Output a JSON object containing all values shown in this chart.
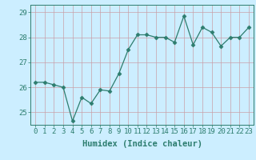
{
  "x": [
    0,
    1,
    2,
    3,
    4,
    5,
    6,
    7,
    8,
    9,
    10,
    11,
    12,
    13,
    14,
    15,
    16,
    17,
    18,
    19,
    20,
    21,
    22,
    23
  ],
  "y": [
    26.2,
    26.2,
    26.1,
    26.0,
    24.65,
    25.6,
    25.35,
    25.9,
    25.85,
    26.55,
    27.5,
    28.1,
    28.1,
    28.0,
    28.0,
    27.8,
    28.85,
    27.7,
    28.4,
    28.2,
    27.65,
    28.0,
    28.0,
    28.4
  ],
  "line_color": "#2d7d6e",
  "marker": "D",
  "marker_size": 2.5,
  "bg_color": "#cceeff",
  "plot_bg_color": "#cceeff",
  "grid_color": "#c8a0a8",
  "xlabel": "Humidex (Indice chaleur)",
  "ylim": [
    24.5,
    29.3
  ],
  "xlim": [
    -0.5,
    23.5
  ],
  "yticks": [
    25,
    26,
    27,
    28,
    29
  ],
  "xtick_labels": [
    "0",
    "1",
    "2",
    "3",
    "4",
    "5",
    "6",
    "7",
    "8",
    "9",
    "10",
    "11",
    "12",
    "13",
    "14",
    "15",
    "16",
    "17",
    "18",
    "19",
    "20",
    "21",
    "22",
    "23"
  ],
  "tick_label_size": 6.5,
  "xlabel_size": 7.5,
  "tick_color": "#2d7d6e",
  "spine_color": "#2d7d6e"
}
